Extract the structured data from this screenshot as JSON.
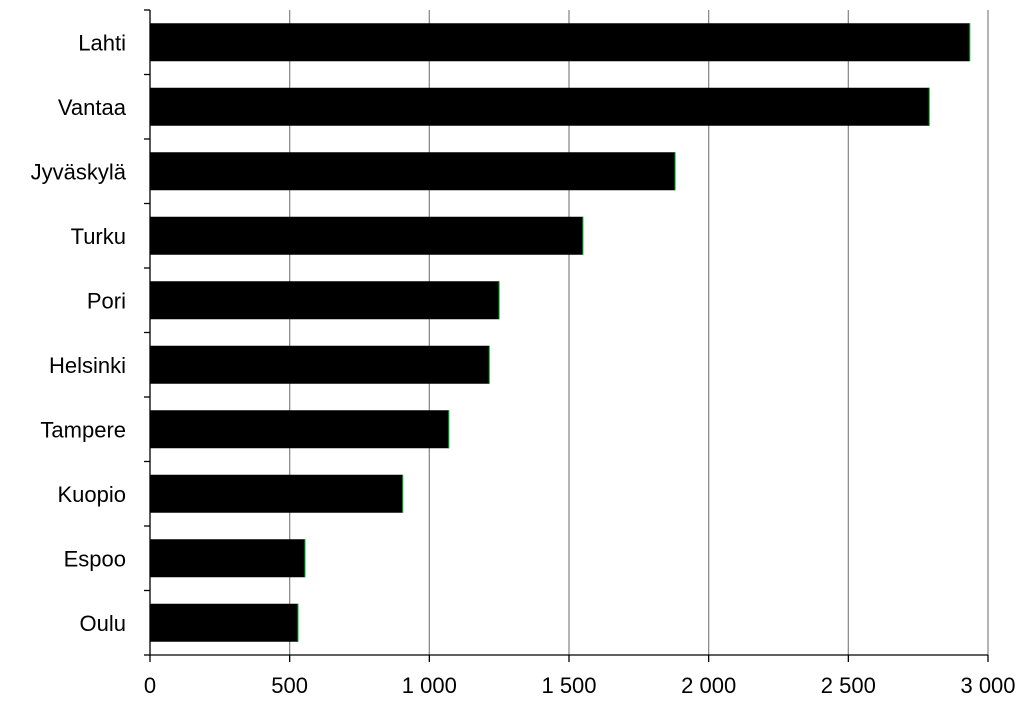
{
  "chart_data": {
    "type": "bar",
    "orientation": "horizontal",
    "categories": [
      "Lahti",
      "Vantaa",
      "Jyväskylä",
      "Turku",
      "Pori",
      "Helsinki",
      "Tampere",
      "Kuopio",
      "Espoo",
      "Oulu"
    ],
    "values": [
      2935,
      2790,
      1880,
      1550,
      1250,
      1215,
      1070,
      905,
      555,
      530
    ],
    "xticks": [
      0,
      500,
      1000,
      1500,
      2000,
      2500,
      3000
    ],
    "xtick_labels": [
      "0",
      "500",
      "1 000",
      "1 500",
      "2 000",
      "2 500",
      "3 000"
    ],
    "xlim": [
      0,
      3000
    ],
    "grid": "vertical",
    "bar_color": "#000000",
    "bar_edge_color": "#00cc33",
    "gridline_color": "#8c8c8c",
    "title": "",
    "xlabel": "",
    "ylabel": ""
  }
}
